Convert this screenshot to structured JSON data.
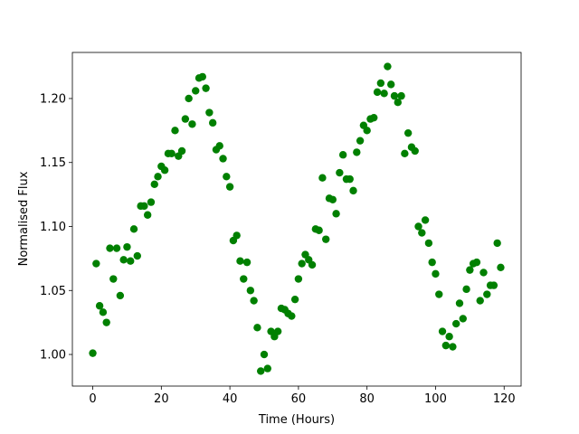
{
  "chart_data": {
    "type": "scatter",
    "x_label": "Time (Hours)",
    "y_label": "Normalised Flux",
    "color": "#008000",
    "x": [
      0,
      1,
      2,
      3,
      4,
      5,
      6,
      7,
      8,
      9,
      10,
      11,
      12,
      13,
      14,
      15,
      16,
      17,
      18,
      19,
      20,
      21,
      22,
      23,
      24,
      25,
      26,
      27,
      28,
      29,
      30,
      31,
      32,
      33,
      34,
      35,
      36,
      37,
      38,
      39,
      40,
      41,
      42,
      43,
      44,
      45,
      46,
      47,
      48,
      49,
      50,
      51,
      52,
      53,
      54,
      55,
      56,
      57,
      58,
      59,
      60,
      61,
      62,
      63,
      64,
      65,
      66,
      67,
      68,
      69,
      70,
      71,
      72,
      73,
      74,
      75,
      76,
      77,
      78,
      79,
      80,
      81,
      82,
      83,
      84,
      85,
      86,
      87,
      88,
      89,
      90,
      91,
      92,
      93,
      94,
      95,
      96,
      97,
      98,
      99,
      100,
      101,
      102,
      103,
      104,
      105,
      106,
      107,
      108,
      109,
      110,
      111,
      112,
      113,
      114,
      115,
      116,
      117,
      118,
      119
    ],
    "values": [
      1.001,
      1.071,
      1.038,
      1.033,
      1.025,
      1.083,
      1.059,
      1.083,
      1.046,
      1.074,
      1.084,
      1.073,
      1.098,
      1.077,
      1.116,
      1.116,
      1.109,
      1.119,
      1.133,
      1.139,
      1.147,
      1.144,
      1.157,
      1.157,
      1.175,
      1.155,
      1.159,
      1.184,
      1.2,
      1.18,
      1.206,
      1.216,
      1.217,
      1.208,
      1.189,
      1.181,
      1.16,
      1.163,
      1.153,
      1.139,
      1.131,
      1.089,
      1.093,
      1.073,
      1.059,
      1.072,
      1.05,
      1.042,
      1.021,
      0.987,
      1.0,
      0.989,
      1.018,
      1.014,
      1.018,
      1.036,
      1.035,
      1.032,
      1.03,
      1.043,
      1.059,
      1.071,
      1.078,
      1.074,
      1.07,
      1.098,
      1.097,
      1.138,
      1.09,
      1.122,
      1.121,
      1.11,
      1.142,
      1.156,
      1.137,
      1.137,
      1.128,
      1.158,
      1.167,
      1.179,
      1.175,
      1.184,
      1.185,
      1.205,
      1.212,
      1.204,
      1.225,
      1.211,
      1.202,
      1.197,
      1.202,
      1.157,
      1.173,
      1.162,
      1.159,
      1.1,
      1.095,
      1.105,
      1.087,
      1.072,
      1.063,
      1.047,
      1.018,
      1.007,
      1.014,
      1.006,
      1.024,
      1.04,
      1.028,
      1.051,
      1.066,
      1.071,
      1.072,
      1.042,
      1.064,
      1.047,
      1.054,
      1.054,
      1.087,
      1.068
    ],
    "xlim": [
      -5.95,
      124.95
    ],
    "xticks": [
      0,
      20,
      40,
      60,
      80,
      100,
      120
    ],
    "ylim": [
      0.9753,
      1.236
    ],
    "yticks": [
      {
        "value": 1.0,
        "label": "1.00"
      },
      {
        "value": 1.05,
        "label": "1.05"
      },
      {
        "value": 1.1,
        "label": "1.10"
      },
      {
        "value": 1.15,
        "label": "1.15"
      },
      {
        "value": 1.2,
        "label": "1.20"
      }
    ],
    "grid": false
  }
}
